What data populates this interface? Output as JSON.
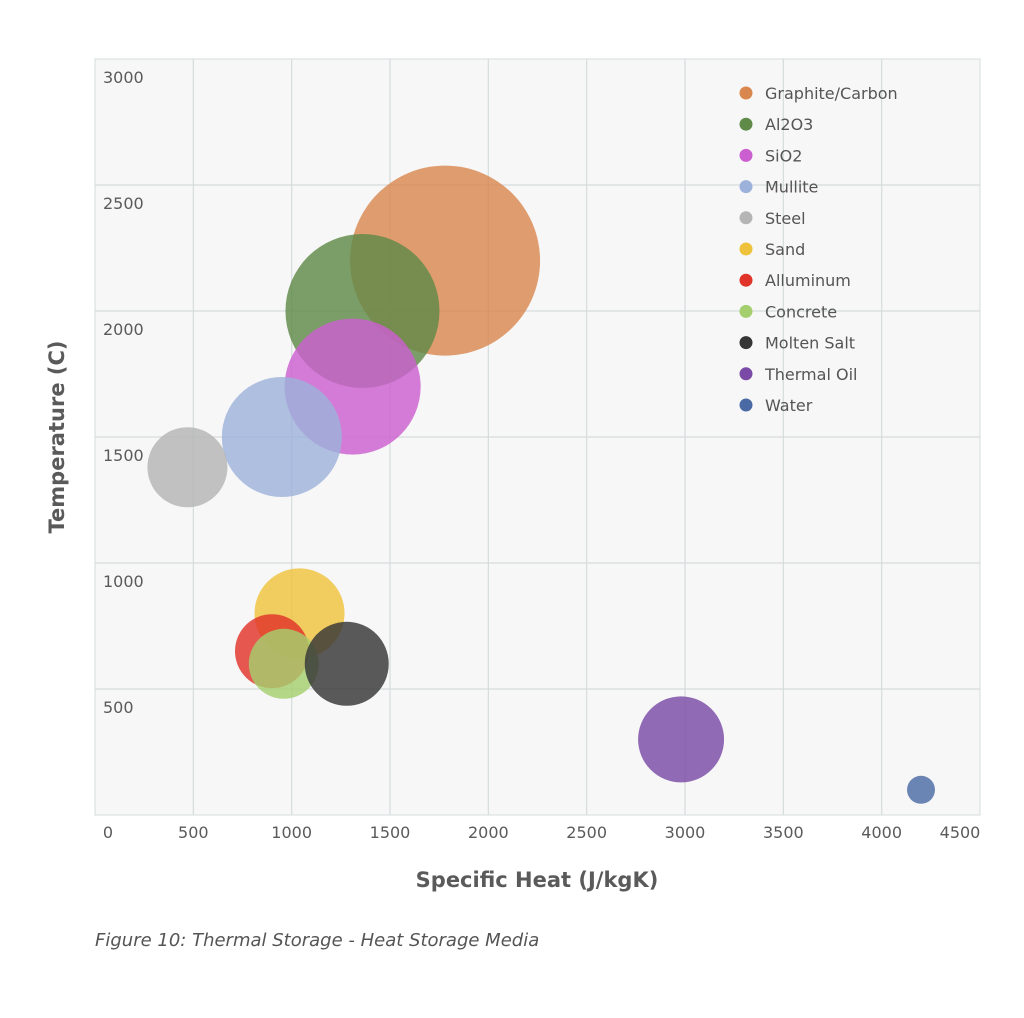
{
  "chart_data": {
    "type": "scatter",
    "subtype": "bubble",
    "xlabel": "Specific Heat (J/kgK)",
    "ylabel": "Temperature (C)",
    "xlim": [
      0,
      4500
    ],
    "ylim": [
      0,
      3000
    ],
    "xticks": [
      0,
      500,
      1000,
      1500,
      2000,
      2500,
      3000,
      3500,
      4000,
      4500
    ],
    "yticks": [
      500,
      1000,
      1500,
      2000,
      2500,
      3000
    ],
    "grid": true,
    "legend_position": "top-right",
    "series": [
      {
        "name": "Graphite/Carbon",
        "x": 1780,
        "y": 2200,
        "size": 95,
        "color": "#d9874f"
      },
      {
        "name": "Al2O3",
        "x": 1360,
        "y": 2000,
        "size": 77,
        "color": "#5f8a48"
      },
      {
        "name": "SiO2",
        "x": 1310,
        "y": 1700,
        "size": 68,
        "color": "#cc5fd0"
      },
      {
        "name": "Mullite",
        "x": 950,
        "y": 1500,
        "size": 60,
        "color": "#9db2db"
      },
      {
        "name": "Steel",
        "x": 470,
        "y": 1380,
        "size": 40,
        "color": "#b5b5b5"
      },
      {
        "name": "Sand",
        "x": 1040,
        "y": 800,
        "size": 45,
        "color": "#efc23c"
      },
      {
        "name": "Alluminum",
        "x": 900,
        "y": 650,
        "size": 37,
        "color": "#e0332a"
      },
      {
        "name": "Concrete",
        "x": 960,
        "y": 600,
        "size": 35,
        "color": "#a5cf6e"
      },
      {
        "name": "Molten Salt",
        "x": 1280,
        "y": 600,
        "size": 42,
        "color": "#363636"
      },
      {
        "name": "Thermal Oil",
        "x": 2980,
        "y": 300,
        "size": 43,
        "color": "#7a4aa6"
      },
      {
        "name": "Water",
        "x": 4200,
        "y": 100,
        "size": 14,
        "color": "#4a6aa5"
      }
    ]
  },
  "caption": "Figure 10: Thermal Storage - Heat Storage Media"
}
